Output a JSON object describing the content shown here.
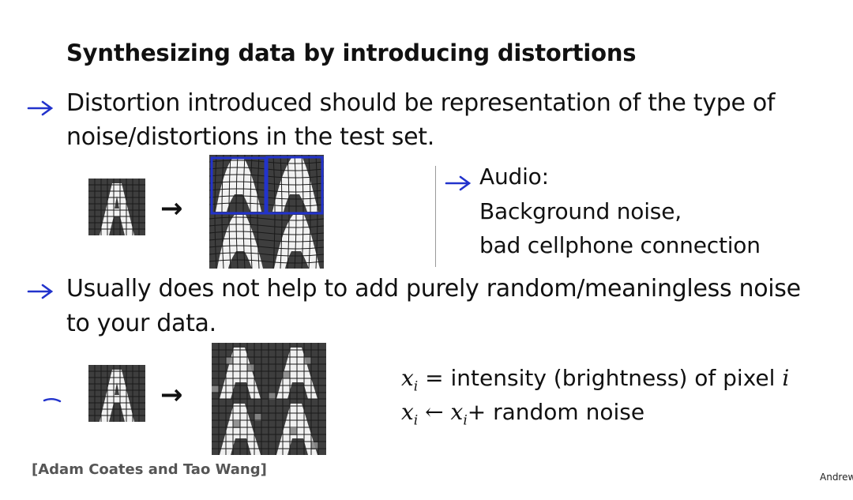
{
  "slide": {
    "title": "Synthesizing data by introducing distortions",
    "bullet1": {
      "line1": "Distortion introduced should be representation of the type of",
      "line2": "noise/distortions in the test set."
    },
    "audio": {
      "heading": "Audio:",
      "line1": "Background noise,",
      "line2": "bad cellphone connection"
    },
    "bullet2": {
      "line1": "Usually does not help to add purely random/meaningless noise",
      "line2": "to your data."
    },
    "formula": {
      "line1_lhs": "x",
      "line1_sub": "i",
      "line1_eq": "=",
      "line1_text": "intensity (brightness) of pixel",
      "line1_var": "i",
      "line2_lhs": "x",
      "line2_sub": "i",
      "line2_arrow": "←",
      "line2_rhs": "x",
      "line2_rhs_sub": "i",
      "line2_text": "+ random noise"
    },
    "citation": "[Adam Coates and Tao Wang]",
    "author_fragment": "Andrew",
    "arrow_glyph": "→"
  },
  "colors": {
    "ink_blue": "#2233cc",
    "glyph_dark": "#3e3e3e",
    "glyph_light": "#f2f2f2"
  }
}
